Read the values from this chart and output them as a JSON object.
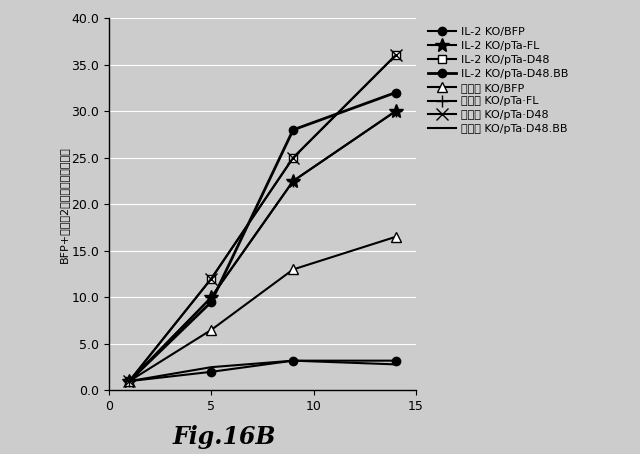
{
  "x": [
    1,
    5,
    9,
    14
  ],
  "series": [
    {
      "label": "IL-2 KO/BFP",
      "y": [
        1.0,
        2.0,
        3.2,
        3.2
      ],
      "marker": "o",
      "markersize": 6,
      "linestyle": "-",
      "markerfacecolor": "black",
      "linewidth": 1.5
    },
    {
      "label": "IL-2 KO/pTa-FL",
      "y": [
        1.0,
        10.0,
        22.5,
        30.0
      ],
      "marker": "*",
      "markersize": 10,
      "linestyle": "-",
      "markerfacecolor": "black",
      "linewidth": 1.5
    },
    {
      "label": "IL-2 KO/pTa-D48",
      "y": [
        1.0,
        12.0,
        25.0,
        36.0
      ],
      "marker": "s",
      "markersize": 6,
      "linestyle": "-",
      "markerfacecolor": "white",
      "linewidth": 1.5
    },
    {
      "label": "IL-2 KO/pTa-D48.BB",
      "y": [
        1.0,
        9.5,
        28.0,
        32.0
      ],
      "marker": "o",
      "markersize": 6,
      "linestyle": "-",
      "markerfacecolor": "black",
      "linewidth": 2.0
    },
    {
      "label": "ビーズ KO/BFP",
      "y": [
        1.0,
        6.5,
        13.0,
        16.5
      ],
      "marker": "^",
      "markersize": 7,
      "linestyle": "-",
      "markerfacecolor": "white",
      "linewidth": 1.5
    },
    {
      "label": "ビーズ KO/pTa·FL",
      "y": [
        1.0,
        10.0,
        22.5,
        30.0
      ],
      "marker": "+",
      "markersize": 8,
      "linestyle": "-",
      "markerfacecolor": "black",
      "linewidth": 1.5
    },
    {
      "label": "ビーズ KO/pTa·D48",
      "y": [
        1.0,
        12.0,
        25.0,
        36.0
      ],
      "marker": "x",
      "markersize": 8,
      "linestyle": "-",
      "markerfacecolor": "black",
      "linewidth": 1.5
    },
    {
      "label": "ビーズ KO/pTa·D48.BB",
      "y": [
        1.0,
        2.5,
        3.2,
        2.8
      ],
      "marker": null,
      "markersize": 0,
      "linestyle": "-",
      "markerfacecolor": "black",
      "linewidth": 1.5
    }
  ],
  "ylabel": "BFP+細胞：2日目までの誘導倍数",
  "ylim": [
    0.0,
    40.0
  ],
  "yticks": [
    0.0,
    5.0,
    10.0,
    15.0,
    20.0,
    25.0,
    30.0,
    35.0,
    40.0
  ],
  "xlim": [
    0,
    15
  ],
  "xticks": [
    0,
    5,
    10,
    15
  ],
  "xtick_labels": [
    "0",
    "5",
    "10",
    "15"
  ],
  "figure_title": "Fig.16B",
  "bg_color": "#d8d8d8",
  "plot_bg": "#d4d4d4"
}
